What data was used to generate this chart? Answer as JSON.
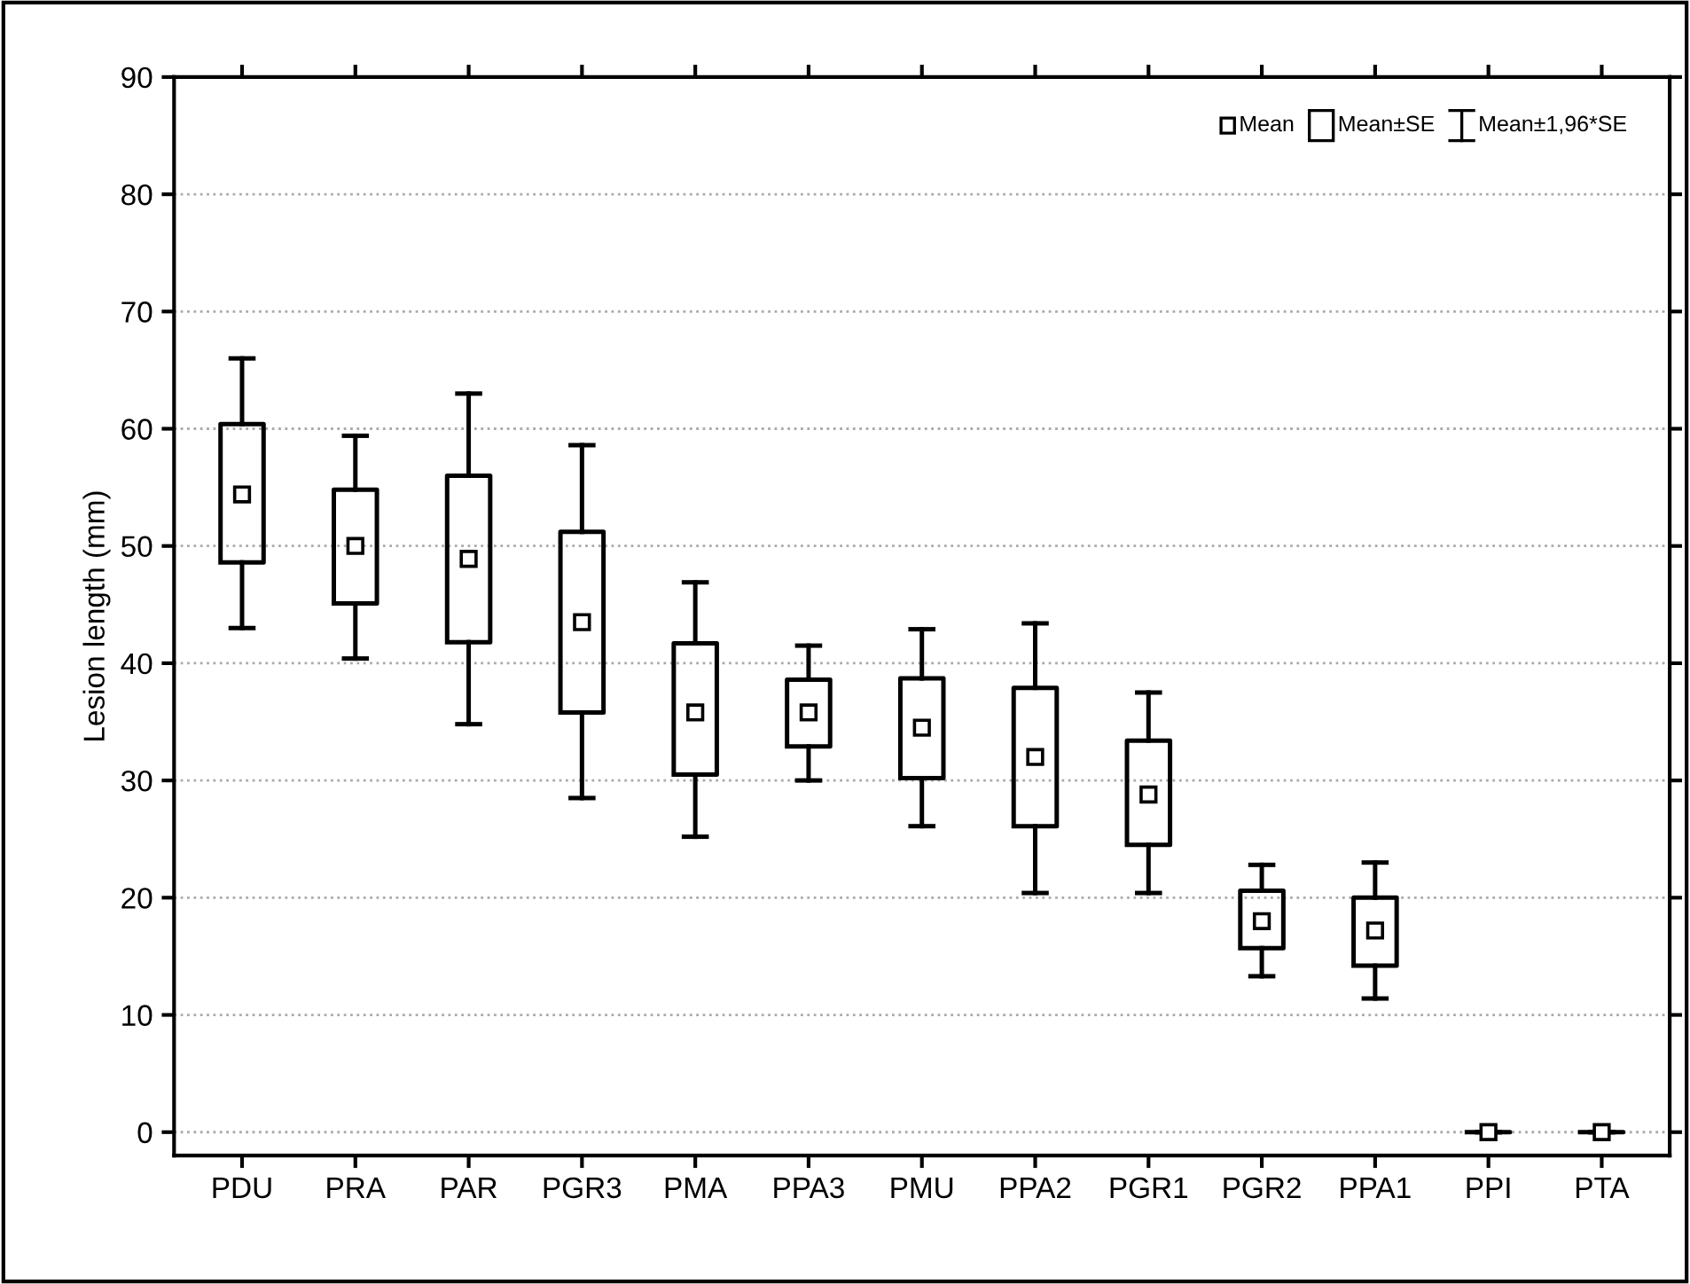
{
  "chart_data": {
    "type": "box",
    "ylabel": "Lesion length (mm)",
    "categories": [
      "PDU",
      "PRA",
      "PAR",
      "PGR3",
      "PMA",
      "PPA3",
      "PMU",
      "PPA2",
      "PGR1",
      "PGR2",
      "PPA1",
      "PPI",
      "PTA"
    ],
    "boxes": [
      {
        "low": 43.0,
        "q1": 48.6,
        "q3": 60.4,
        "high": 66.0,
        "mean": 54.4
      },
      {
        "low": 40.4,
        "q1": 45.1,
        "q3": 54.8,
        "high": 59.4,
        "mean": 50.0
      },
      {
        "low": 34.8,
        "q1": 41.8,
        "q3": 56.0,
        "high": 63.0,
        "mean": 48.9
      },
      {
        "low": 28.5,
        "q1": 35.8,
        "q3": 51.2,
        "high": 58.6,
        "mean": 43.5
      },
      {
        "low": 25.2,
        "q1": 30.5,
        "q3": 41.7,
        "high": 46.9,
        "mean": 35.8
      },
      {
        "low": 30.0,
        "q1": 32.9,
        "q3": 38.6,
        "high": 41.5,
        "mean": 35.8
      },
      {
        "low": 26.1,
        "q1": 30.2,
        "q3": 38.7,
        "high": 42.9,
        "mean": 34.5
      },
      {
        "low": 20.4,
        "q1": 26.1,
        "q3": 37.9,
        "high": 43.4,
        "mean": 32.0
      },
      {
        "low": 20.4,
        "q1": 24.5,
        "q3": 33.4,
        "high": 37.5,
        "mean": 28.8
      },
      {
        "low": 13.3,
        "q1": 15.7,
        "q3": 20.6,
        "high": 22.8,
        "mean": 18.0
      },
      {
        "low": 11.4,
        "q1": 14.2,
        "q3": 20.0,
        "high": 23.0,
        "mean": 17.2
      },
      {
        "low": 0,
        "q1": 0,
        "q3": 0,
        "high": 0,
        "mean": 0
      },
      {
        "low": 0,
        "q1": 0,
        "q3": 0,
        "high": 0,
        "mean": 0
      }
    ],
    "ylim": [
      -2,
      90
    ],
    "yticks": [
      0,
      10,
      20,
      30,
      40,
      50,
      60,
      70,
      80,
      90
    ],
    "grid": "y",
    "marker": "square",
    "annotations": [
      "Mean",
      "Mean±SE",
      "Mean±1,96*SE"
    ]
  }
}
